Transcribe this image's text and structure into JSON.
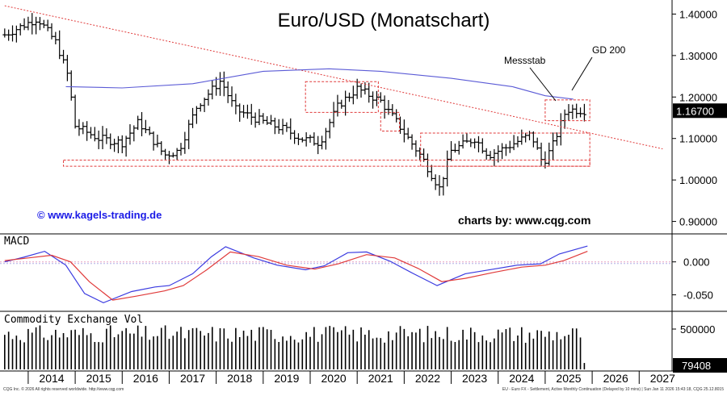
{
  "chart_data": [
    {
      "type": "ohlc",
      "title": "Euro/USD (Monatschart)",
      "y_ticks": [
        "1.40000",
        "1.30000",
        "1.20000",
        "1.10000",
        "1.00000",
        "0.90000"
      ],
      "ylim": [
        0.87,
        1.43
      ],
      "last_price_label": "1.16700",
      "last_price": 1.167,
      "annotations": {
        "messstab": "Messstab",
        "gd200": "GD 200",
        "website": "© www.kagels-trading.de",
        "source": "charts by: www.cqg.com"
      },
      "anchor_closes": [
        {
          "date": 2013.5,
          "close": 1.35
        },
        {
          "date": 2014.2,
          "close": 1.39
        },
        {
          "date": 2014.6,
          "close": 1.33
        },
        {
          "date": 2014.85,
          "close": 1.25
        },
        {
          "date": 2015.0,
          "close": 1.13
        },
        {
          "date": 2015.5,
          "close": 1.1
        },
        {
          "date": 2016.0,
          "close": 1.09
        },
        {
          "date": 2016.35,
          "close": 1.14
        },
        {
          "date": 2016.9,
          "close": 1.06
        },
        {
          "date": 2017.2,
          "close": 1.07
        },
        {
          "date": 2017.6,
          "close": 1.18
        },
        {
          "date": 2018.1,
          "close": 1.24
        },
        {
          "date": 2018.4,
          "close": 1.17
        },
        {
          "date": 2019.0,
          "close": 1.14
        },
        {
          "date": 2019.5,
          "close": 1.12
        },
        {
          "date": 2019.8,
          "close": 1.1
        },
        {
          "date": 2020.2,
          "close": 1.09
        },
        {
          "date": 2020.6,
          "close": 1.18
        },
        {
          "date": 2021.0,
          "close": 1.22
        },
        {
          "date": 2021.5,
          "close": 1.19
        },
        {
          "date": 2021.9,
          "close": 1.13
        },
        {
          "date": 2022.4,
          "close": 1.05
        },
        {
          "date": 2022.75,
          "close": 0.98
        },
        {
          "date": 2023.0,
          "close": 1.07
        },
        {
          "date": 2023.5,
          "close": 1.1
        },
        {
          "date": 2023.8,
          "close": 1.06
        },
        {
          "date": 2024.2,
          "close": 1.08
        },
        {
          "date": 2024.7,
          "close": 1.11
        },
        {
          "date": 2024.95,
          "close": 1.04
        },
        {
          "date": 2025.15,
          "close": 1.08
        },
        {
          "date": 2025.45,
          "close": 1.17
        },
        {
          "date": 2025.9,
          "close": 1.167
        }
      ],
      "gd200_curve": [
        {
          "date": 2014.8,
          "value": 1.225
        },
        {
          "date": 2016.0,
          "value": 1.222
        },
        {
          "date": 2017.5,
          "value": 1.232
        },
        {
          "date": 2019.0,
          "value": 1.262
        },
        {
          "date": 2020.4,
          "value": 1.268
        },
        {
          "date": 2021.5,
          "value": 1.262
        },
        {
          "date": 2023.0,
          "value": 1.245
        },
        {
          "date": 2024.3,
          "value": 1.225
        },
        {
          "date": 2025.0,
          "value": 1.203
        },
        {
          "date": 2025.6,
          "value": 1.195
        }
      ],
      "trendline": [
        {
          "date": 2013.5,
          "value": 1.42
        },
        {
          "date": 2027.5,
          "value": 1.075
        }
      ],
      "zones": [
        {
          "date_from": 2014.75,
          "date_to": 2025.95,
          "y_from": 1.033,
          "y_to": 1.048
        },
        {
          "date_from": 2019.9,
          "date_to": 2021.45,
          "y_from": 1.163,
          "y_to": 1.237
        },
        {
          "date_from": 2021.5,
          "date_to": 2021.9,
          "y_from": 1.118,
          "y_to": 1.163
        },
        {
          "date_from": 2022.35,
          "date_to": 2025.95,
          "y_from": 1.033,
          "y_to": 1.113
        },
        {
          "date_from": 2025.0,
          "date_to": 2025.95,
          "y_from": 1.143,
          "y_to": 1.193
        }
      ]
    },
    {
      "type": "line",
      "title": "MACD",
      "y_ticks": [
        "0.000",
        "-0.050"
      ],
      "ylim": [
        -0.075,
        0.04
      ],
      "series": [
        {
          "color": "#3a3ae0",
          "points": [
            {
              "date": 2013.5,
              "value": 0.0
            },
            {
              "date": 2013.9,
              "value": 0.007
            },
            {
              "date": 2014.35,
              "value": 0.016
            },
            {
              "date": 2014.8,
              "value": -0.005
            },
            {
              "date": 2015.2,
              "value": -0.048
            },
            {
              "date": 2015.6,
              "value": -0.062
            },
            {
              "date": 2016.2,
              "value": -0.045
            },
            {
              "date": 2016.7,
              "value": -0.038
            },
            {
              "date": 2017.0,
              "value": -0.036
            },
            {
              "date": 2017.5,
              "value": -0.018
            },
            {
              "date": 2017.9,
              "value": 0.008
            },
            {
              "date": 2018.2,
              "value": 0.023
            },
            {
              "date": 2018.8,
              "value": 0.006
            },
            {
              "date": 2019.3,
              "value": -0.005
            },
            {
              "date": 2019.9,
              "value": -0.012
            },
            {
              "date": 2020.3,
              "value": -0.006
            },
            {
              "date": 2020.8,
              "value": 0.014
            },
            {
              "date": 2021.2,
              "value": 0.015
            },
            {
              "date": 2021.7,
              "value": 0.001
            },
            {
              "date": 2022.2,
              "value": -0.018
            },
            {
              "date": 2022.7,
              "value": -0.036
            },
            {
              "date": 2023.3,
              "value": -0.018
            },
            {
              "date": 2023.9,
              "value": -0.011
            },
            {
              "date": 2024.4,
              "value": -0.005
            },
            {
              "date": 2024.9,
              "value": -0.003
            },
            {
              "date": 2025.3,
              "value": 0.012
            },
            {
              "date": 2025.9,
              "value": 0.024
            }
          ]
        },
        {
          "color": "#e03a3a",
          "points": [
            {
              "date": 2013.5,
              "value": 0.002
            },
            {
              "date": 2014.0,
              "value": 0.006
            },
            {
              "date": 2014.5,
              "value": 0.01
            },
            {
              "date": 2014.9,
              "value": 0.0
            },
            {
              "date": 2015.3,
              "value": -0.03
            },
            {
              "date": 2015.8,
              "value": -0.058
            },
            {
              "date": 2016.3,
              "value": -0.052
            },
            {
              "date": 2016.9,
              "value": -0.044
            },
            {
              "date": 2017.3,
              "value": -0.036
            },
            {
              "date": 2017.8,
              "value": -0.012
            },
            {
              "date": 2018.3,
              "value": 0.015
            },
            {
              "date": 2018.9,
              "value": 0.008
            },
            {
              "date": 2019.5,
              "value": -0.005
            },
            {
              "date": 2020.1,
              "value": -0.011
            },
            {
              "date": 2020.6,
              "value": -0.003
            },
            {
              "date": 2021.2,
              "value": 0.011
            },
            {
              "date": 2021.8,
              "value": 0.006
            },
            {
              "date": 2022.3,
              "value": -0.01
            },
            {
              "date": 2022.8,
              "value": -0.03
            },
            {
              "date": 2023.3,
              "value": -0.025
            },
            {
              "date": 2023.9,
              "value": -0.016
            },
            {
              "date": 2024.5,
              "value": -0.008
            },
            {
              "date": 2025.0,
              "value": -0.005
            },
            {
              "date": 2025.4,
              "value": 0.002
            },
            {
              "date": 2025.9,
              "value": 0.016
            }
          ]
        }
      ]
    },
    {
      "type": "bar",
      "title": "Commodity Exchange Vol",
      "y_ticks": [
        "500000"
      ],
      "ylim": [
        0,
        700000
      ],
      "last_value_label": "79408",
      "last_value": 79408,
      "bar_color": "#000000"
    }
  ],
  "x_axis": {
    "year_labels": [
      "2014",
      "2015",
      "2016",
      "2017",
      "2018",
      "2019",
      "2020",
      "2021",
      "2022",
      "2023",
      "2024",
      "2025",
      "2026",
      "2027"
    ],
    "xlim": [
      2013.4,
      2027.7
    ]
  },
  "footer": {
    "left": "CQG Inc. © 2026 All rights reserved worldwide. http://www.cqg.com",
    "right": "EU - Euro FX - Settlement, Active Monthly Continuation (Delayed by 10 mins) | Sun Jan 11 2026 15:43:18, CQG 25.12.8015"
  }
}
